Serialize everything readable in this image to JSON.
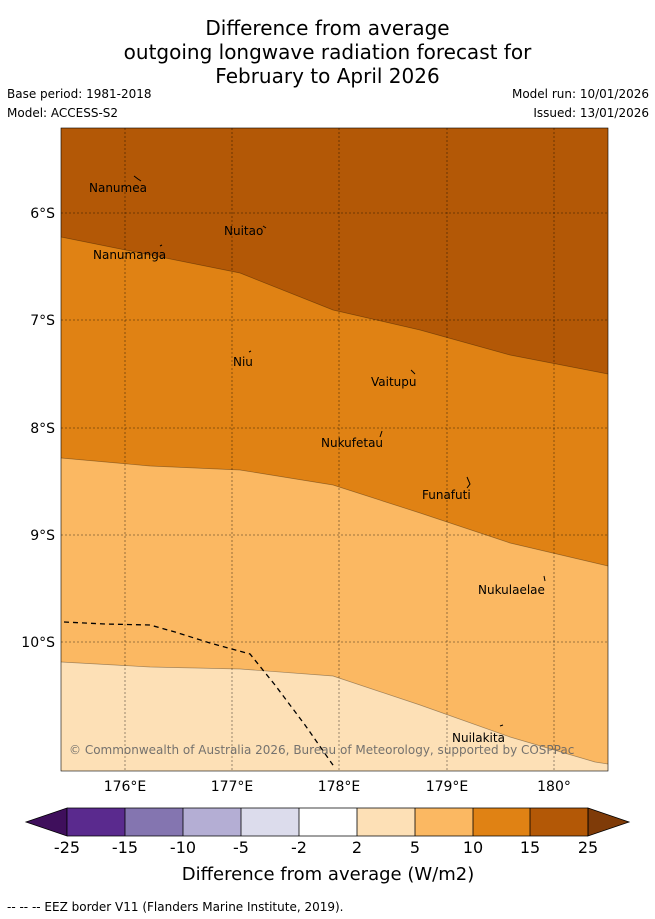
{
  "title": {
    "line1": "Difference from average",
    "line2": "outgoing longwave radiation forecast for",
    "line3": "February to April 2026"
  },
  "meta": {
    "base_period": "Base period: 1981-2018",
    "model": "Model: ACCESS-S2",
    "model_run": "Model run: 10/01/2026",
    "issued": "Issued: 13/01/2026"
  },
  "map": {
    "lat_labels": [
      "6°S",
      "7°S",
      "8°S",
      "9°S",
      "10°S"
    ],
    "lon_labels": [
      "176°E",
      "177°E",
      "178°E",
      "179°E",
      "180°"
    ],
    "places": [
      "Nanumea",
      "Nuitao",
      "Nanumanga",
      "Niu",
      "Vaitupu",
      "Nukufetau",
      "Funafuti",
      "Nukulaelae",
      "Nuilakita"
    ],
    "copyright": "© Commonwealth of Australia 2026, Bureau of Meteorology, supported by COSPPac"
  },
  "colorbar": {
    "ticks": [
      "-25",
      "-15",
      "-10",
      "-5",
      "-2",
      "2",
      "5",
      "10",
      "15",
      "25"
    ],
    "title": "Difference from average (W/m2)",
    "colors": {
      "below_min": "#3f0f5c",
      "c1": "#5a2a8e",
      "c2": "#8475b0",
      "c3": "#b4aed4",
      "c4": "#dcdcec",
      "c5": "#ffffff",
      "c6": "#fde0b6",
      "c7": "#fbb862",
      "c8": "#e08214",
      "c9": "#b35806",
      "above_max": "#7f3b08"
    }
  },
  "footnote": "--  --  -- EEZ border V11 (Flanders Marine Institute, 2019)."
}
